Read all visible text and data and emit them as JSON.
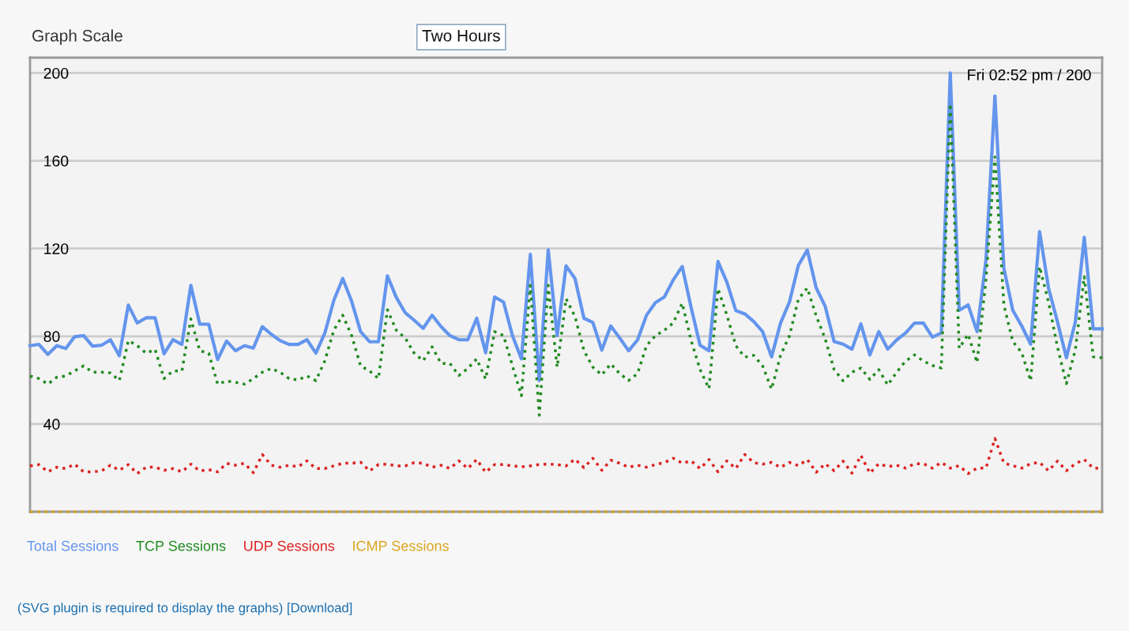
{
  "chart_data": {
    "type": "line",
    "annotations": [
      "Graph Scale",
      "Two Hours",
      "Fri 02:52 pm / 200",
      "(SVG plugin is required to display the graphs) [Download]"
    ],
    "categories": [
      null,
      null,
      null,
      null,
      null,
      null,
      null,
      null,
      null,
      null,
      null,
      null,
      null,
      null,
      null,
      null,
      null,
      null,
      null,
      null,
      null,
      null,
      null,
      null,
      null,
      null,
      null,
      null,
      null,
      null,
      null,
      null,
      null,
      null,
      null,
      null,
      null,
      null,
      null,
      null,
      null,
      null,
      null,
      null,
      null,
      null,
      null,
      null,
      null,
      null,
      null,
      null,
      null,
      null,
      null,
      null,
      null,
      null,
      null,
      null,
      null,
      null,
      null,
      null,
      null,
      null,
      null,
      null,
      null,
      null,
      null,
      null,
      null,
      null,
      null,
      null,
      null,
      null,
      null,
      null,
      null,
      null,
      null,
      null,
      null,
      null,
      null,
      null,
      null,
      null,
      null,
      null,
      null,
      null,
      null,
      null,
      null,
      null,
      null,
      null,
      null,
      null,
      null,
      null,
      null,
      null,
      null,
      null,
      null,
      null,
      null,
      null,
      null,
      null,
      null,
      null,
      null,
      null,
      null,
      null,
      null
    ],
    "series": [
      {
        "name": "Total Sessions",
        "color": "#6495ed",
        "line_style": "solid",
        "values": [
          75.7,
          76.3,
          71.7,
          75.7,
          74.4,
          79.8,
          80.3,
          75.5,
          75.9,
          78.4,
          71.1,
          94.2,
          86.1,
          88.4,
          88.4,
          72.0,
          78.4,
          76.3,
          103.2,
          85.5,
          85.5,
          69.4,
          77.8,
          73.4,
          75.7,
          74.6,
          84.4,
          80.9,
          78.0,
          76.3,
          76.3,
          78.4,
          72.3,
          81.5,
          96.3,
          106.3,
          95.9,
          82.1,
          77.5,
          77.5,
          107.5,
          97.7,
          90.7,
          87.3,
          83.6,
          89.6,
          84.4,
          80.3,
          78.4,
          78.4,
          88.2,
          72.5,
          97.9,
          95.6,
          80.3,
          69.7,
          117.3,
          59.8,
          119.4,
          80.3,
          112.1,
          106.3,
          88.2,
          86.3,
          73.7,
          84.7,
          79.2,
          73.4,
          78.3,
          89.6,
          95.3,
          97.9,
          105.7,
          111.8,
          93.0,
          75.9,
          73.4,
          114.1,
          104.6,
          91.7,
          90.2,
          86.7,
          82.1,
          70.6,
          86.0,
          95.6,
          112.3,
          119.3,
          102.0,
          93.7,
          77.6,
          76.4,
          74.1,
          85.6,
          71.5,
          82.1,
          74.1,
          78.3,
          81.5,
          86.0,
          86.0,
          79.6,
          81.5,
          200,
          91.8,
          94.3,
          82.1,
          114.8,
          189.5,
          111.0,
          91.8,
          84.7,
          76.4,
          127.7,
          102.0,
          86.6,
          70.2,
          86.6,
          125.1,
          83.4,
          83.4
        ]
      },
      {
        "name": "TCP Sessions",
        "color": "#228b22",
        "line_style": "dotted",
        "values": [
          61.9,
          60.7,
          58.2,
          61.3,
          61.9,
          64.2,
          66.5,
          63.6,
          63.6,
          63.3,
          59.8,
          78.0,
          75.7,
          72.3,
          74.0,
          60.7,
          64.2,
          64.2,
          87.9,
          73.4,
          72.3,
          58.2,
          59.6,
          59.0,
          58.2,
          60.7,
          63.6,
          65.3,
          63.6,
          60.7,
          60.1,
          61.9,
          59.8,
          68.8,
          82.7,
          89.6,
          80.3,
          66.5,
          64.2,
          60.7,
          92.1,
          82.7,
          79.2,
          72.3,
          68.8,
          75.2,
          67.6,
          67.6,
          62.1,
          65.3,
          69.7,
          60.5,
          82.1,
          80.3,
          66.5,
          52.9,
          103.2,
          44.0,
          103.2,
          65.9,
          97.1,
          89.0,
          73.4,
          65.9,
          62.4,
          67.4,
          63.0,
          59.8,
          63.0,
          75.7,
          80.3,
          82.7,
          86.1,
          95.1,
          78.0,
          64.8,
          56.1,
          101.7,
          89.6,
          75.7,
          70.5,
          71.3,
          66.5,
          55.9,
          71.2,
          80.2,
          96.9,
          102.0,
          89.2,
          78.9,
          64.8,
          59.7,
          63.6,
          65.5,
          60.3,
          64.8,
          57.8,
          63.6,
          68.7,
          71.5,
          68.7,
          66.7,
          65.5,
          186.0,
          74.5,
          80.9,
          68.0,
          105.9,
          161.7,
          94.3,
          77.6,
          72.5,
          59.7,
          111.7,
          95.6,
          75.1,
          58.4,
          73.8,
          107.2,
          70.6,
          70.2
        ]
      },
      {
        "name": "UDP Sessions",
        "color": "#dd2222",
        "line_style": "dotted",
        "values": [
          20.9,
          21.5,
          18.2,
          20.3,
          19.7,
          21.7,
          18.2,
          18.2,
          18.6,
          21.2,
          18.9,
          21.5,
          17.4,
          20.3,
          20.3,
          18.9,
          19.7,
          18.2,
          21.7,
          18.6,
          19.2,
          18.2,
          22.1,
          21.2,
          22.1,
          17.8,
          26.1,
          21.2,
          20.3,
          21.2,
          20.5,
          23.2,
          19.7,
          19.7,
          20.9,
          22.1,
          22.1,
          22.6,
          18.6,
          21.5,
          21.7,
          20.9,
          20.9,
          22.4,
          22.1,
          20.3,
          21.2,
          19.7,
          23.2,
          19.7,
          23.8,
          18.0,
          21.5,
          21.5,
          20.9,
          20.5,
          20.9,
          21.5,
          21.7,
          21.5,
          20.9,
          24.0,
          20.1,
          24.4,
          18.9,
          23.5,
          22.1,
          20.3,
          21.2,
          20.3,
          21.5,
          22.4,
          24.4,
          22.1,
          23.2,
          19.7,
          23.8,
          18.2,
          23.2,
          19.7,
          26.1,
          22.4,
          21.7,
          22.5,
          20.2,
          22.5,
          21.0,
          23.8,
          18.0,
          21.9,
          18.7,
          23.1,
          17.6,
          25.7,
          17.6,
          21.9,
          20.6,
          21.2,
          19.9,
          21.9,
          21.9,
          19.9,
          22.5,
          19.9,
          21.0,
          17.4,
          19.9,
          19.9,
          33.4,
          22.2,
          21.0,
          19.9,
          21.9,
          22.5,
          18.7,
          23.1,
          18.7,
          21.9,
          23.8,
          19.9,
          19.7
        ]
      },
      {
        "name": "ICMP Sessions",
        "color": "#daa520",
        "line_style": "dotted",
        "values": [
          0,
          0,
          0,
          0,
          0,
          0,
          0,
          0,
          0,
          0,
          0,
          0,
          0,
          0,
          0,
          0,
          0,
          0,
          0,
          0,
          0,
          0,
          0,
          0,
          0,
          0,
          0,
          0,
          0,
          0,
          0,
          0,
          0,
          0,
          0,
          0,
          0,
          0,
          0,
          0,
          0,
          0,
          0,
          0,
          0,
          0,
          0,
          0,
          0,
          0,
          0,
          0,
          0,
          0,
          0,
          0,
          0,
          0,
          0,
          0,
          0,
          0,
          0,
          0,
          0,
          0,
          0,
          0,
          0,
          0,
          0,
          0,
          0,
          0,
          0,
          0,
          0,
          0,
          0,
          0,
          0,
          0,
          0,
          0,
          0,
          0,
          0,
          0,
          0,
          0,
          0,
          0,
          0,
          0,
          0,
          0,
          0,
          0,
          0,
          0,
          0,
          0,
          0,
          0,
          0,
          0,
          0,
          0,
          0,
          0,
          0,
          0,
          0,
          0,
          0,
          0,
          0,
          0,
          0,
          0,
          0
        ]
      }
    ],
    "ylim": [
      0,
      207
    ],
    "yticks": [
      40,
      80,
      120,
      160,
      200
    ],
    "grid": "y",
    "legend": "bottom",
    "marker": "none"
  }
}
